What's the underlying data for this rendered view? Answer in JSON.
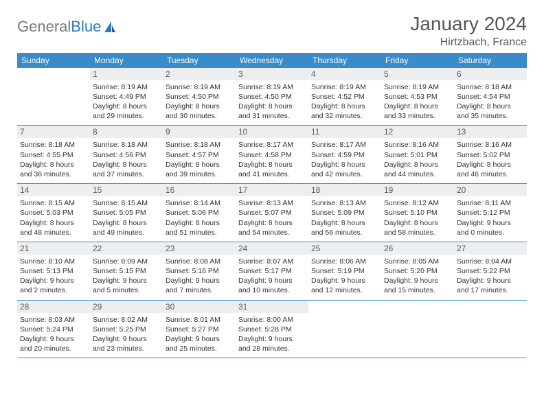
{
  "logo": {
    "text1": "General",
    "text2": "Blue"
  },
  "title": "January 2024",
  "location": "Hirtzbach, France",
  "colors": {
    "header_bg": "#3b8bc9",
    "header_fg": "#ffffff",
    "daynum_bg": "#eceef0",
    "border": "#3b8bc9",
    "logo_gray": "#7a7a7a",
    "logo_blue": "#2c7ac0"
  },
  "dow": [
    "Sunday",
    "Monday",
    "Tuesday",
    "Wednesday",
    "Thursday",
    "Friday",
    "Saturday"
  ],
  "weeks": [
    [
      null,
      {
        "n": "1",
        "sr": "8:19 AM",
        "ss": "4:49 PM",
        "dl": "8 hours and 29 minutes."
      },
      {
        "n": "2",
        "sr": "8:19 AM",
        "ss": "4:50 PM",
        "dl": "8 hours and 30 minutes."
      },
      {
        "n": "3",
        "sr": "8:19 AM",
        "ss": "4:50 PM",
        "dl": "8 hours and 31 minutes."
      },
      {
        "n": "4",
        "sr": "8:19 AM",
        "ss": "4:52 PM",
        "dl": "8 hours and 32 minutes."
      },
      {
        "n": "5",
        "sr": "8:19 AM",
        "ss": "4:53 PM",
        "dl": "8 hours and 33 minutes."
      },
      {
        "n": "6",
        "sr": "8:18 AM",
        "ss": "4:54 PM",
        "dl": "8 hours and 35 minutes."
      }
    ],
    [
      {
        "n": "7",
        "sr": "8:18 AM",
        "ss": "4:55 PM",
        "dl": "8 hours and 36 minutes."
      },
      {
        "n": "8",
        "sr": "8:18 AM",
        "ss": "4:56 PM",
        "dl": "8 hours and 37 minutes."
      },
      {
        "n": "9",
        "sr": "8:18 AM",
        "ss": "4:57 PM",
        "dl": "8 hours and 39 minutes."
      },
      {
        "n": "10",
        "sr": "8:17 AM",
        "ss": "4:58 PM",
        "dl": "8 hours and 41 minutes."
      },
      {
        "n": "11",
        "sr": "8:17 AM",
        "ss": "4:59 PM",
        "dl": "8 hours and 42 minutes."
      },
      {
        "n": "12",
        "sr": "8:16 AM",
        "ss": "5:01 PM",
        "dl": "8 hours and 44 minutes."
      },
      {
        "n": "13",
        "sr": "8:16 AM",
        "ss": "5:02 PM",
        "dl": "8 hours and 46 minutes."
      }
    ],
    [
      {
        "n": "14",
        "sr": "8:15 AM",
        "ss": "5:03 PM",
        "dl": "8 hours and 48 minutes."
      },
      {
        "n": "15",
        "sr": "8:15 AM",
        "ss": "5:05 PM",
        "dl": "8 hours and 49 minutes."
      },
      {
        "n": "16",
        "sr": "8:14 AM",
        "ss": "5:06 PM",
        "dl": "8 hours and 51 minutes."
      },
      {
        "n": "17",
        "sr": "8:13 AM",
        "ss": "5:07 PM",
        "dl": "8 hours and 54 minutes."
      },
      {
        "n": "18",
        "sr": "8:13 AM",
        "ss": "5:09 PM",
        "dl": "8 hours and 56 minutes."
      },
      {
        "n": "19",
        "sr": "8:12 AM",
        "ss": "5:10 PM",
        "dl": "8 hours and 58 minutes."
      },
      {
        "n": "20",
        "sr": "8:11 AM",
        "ss": "5:12 PM",
        "dl": "9 hours and 0 minutes."
      }
    ],
    [
      {
        "n": "21",
        "sr": "8:10 AM",
        "ss": "5:13 PM",
        "dl": "9 hours and 2 minutes."
      },
      {
        "n": "22",
        "sr": "8:09 AM",
        "ss": "5:15 PM",
        "dl": "9 hours and 5 minutes."
      },
      {
        "n": "23",
        "sr": "8:08 AM",
        "ss": "5:16 PM",
        "dl": "9 hours and 7 minutes."
      },
      {
        "n": "24",
        "sr": "8:07 AM",
        "ss": "5:17 PM",
        "dl": "9 hours and 10 minutes."
      },
      {
        "n": "25",
        "sr": "8:06 AM",
        "ss": "5:19 PM",
        "dl": "9 hours and 12 minutes."
      },
      {
        "n": "26",
        "sr": "8:05 AM",
        "ss": "5:20 PM",
        "dl": "9 hours and 15 minutes."
      },
      {
        "n": "27",
        "sr": "8:04 AM",
        "ss": "5:22 PM",
        "dl": "9 hours and 17 minutes."
      }
    ],
    [
      {
        "n": "28",
        "sr": "8:03 AM",
        "ss": "5:24 PM",
        "dl": "9 hours and 20 minutes."
      },
      {
        "n": "29",
        "sr": "8:02 AM",
        "ss": "5:25 PM",
        "dl": "9 hours and 23 minutes."
      },
      {
        "n": "30",
        "sr": "8:01 AM",
        "ss": "5:27 PM",
        "dl": "9 hours and 25 minutes."
      },
      {
        "n": "31",
        "sr": "8:00 AM",
        "ss": "5:28 PM",
        "dl": "9 hours and 28 minutes."
      },
      null,
      null,
      null
    ]
  ],
  "labels": {
    "sunrise": "Sunrise: ",
    "sunset": "Sunset: ",
    "daylight": "Daylight: "
  }
}
